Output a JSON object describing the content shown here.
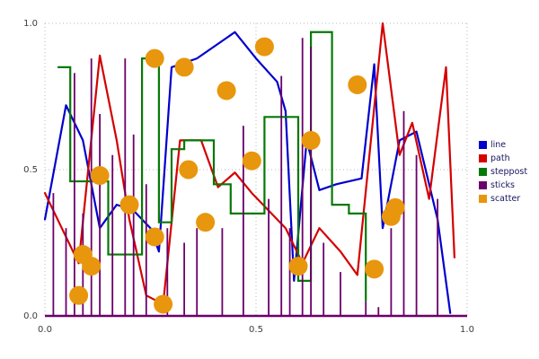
{
  "figure": {
    "background": "#ffffff",
    "tick_color": "#3c3c3c",
    "grid_color": "#b8b8b8"
  },
  "chart_data": {
    "type": "mixed",
    "title": "",
    "xlabel": "",
    "ylabel": "",
    "xlim": [
      0.0,
      1.0
    ],
    "ylim": [
      0.0,
      1.0
    ],
    "grid": "dotted box lines at 0.0, 0.5 and 1.0 on both axes",
    "x_tick_values": [
      0.0,
      0.5,
      1.0
    ],
    "x_tick_labels": [
      "0.0",
      "0.5",
      "1.0"
    ],
    "y_tick_values": [
      0.0,
      0.5,
      1.0
    ],
    "y_tick_labels": [
      "0.0",
      "0.5",
      "1.0"
    ],
    "legend": {
      "position": "center right, outside plot",
      "entries": [
        {
          "label": "line",
          "color": "#0000cd"
        },
        {
          "label": "path",
          "color": "#d40000"
        },
        {
          "label": "steppost",
          "color": "#077807"
        },
        {
          "label": "sticks",
          "color": "#6b006b"
        },
        {
          "label": "scatter",
          "color": "#e8960d"
        }
      ]
    },
    "series": [
      {
        "name": "line",
        "type": "line",
        "color": "#0000cd",
        "x": [
          0.0,
          0.05,
          0.09,
          0.13,
          0.17,
          0.21,
          0.25,
          0.27,
          0.3,
          0.36,
          0.45,
          0.5,
          0.55,
          0.57,
          0.59,
          0.62,
          0.65,
          0.69,
          0.72,
          0.75,
          0.78,
          0.8,
          0.84,
          0.88,
          0.93,
          0.96
        ],
        "y": [
          0.33,
          0.72,
          0.6,
          0.3,
          0.38,
          0.36,
          0.3,
          0.22,
          0.85,
          0.88,
          0.97,
          0.88,
          0.8,
          0.7,
          0.12,
          0.6,
          0.43,
          0.45,
          0.46,
          0.47,
          0.86,
          0.3,
          0.6,
          0.63,
          0.33,
          0.01
        ]
      },
      {
        "name": "path",
        "type": "line",
        "color": "#d40000",
        "x": [
          0.0,
          0.04,
          0.08,
          0.13,
          0.17,
          0.2,
          0.24,
          0.28,
          0.32,
          0.37,
          0.41,
          0.45,
          0.49,
          0.53,
          0.57,
          0.61,
          0.65,
          0.7,
          0.74,
          0.8,
          0.84,
          0.87,
          0.91,
          0.95,
          0.97
        ],
        "y": [
          0.42,
          0.3,
          0.18,
          0.89,
          0.6,
          0.33,
          0.07,
          0.04,
          0.6,
          0.6,
          0.44,
          0.49,
          0.42,
          0.36,
          0.3,
          0.18,
          0.3,
          0.22,
          0.14,
          1.0,
          0.55,
          0.66,
          0.4,
          0.85,
          0.2
        ]
      },
      {
        "name": "steppost",
        "type": "step-post",
        "color": "#077807",
        "x": [
          0.03,
          0.06,
          0.15,
          0.23,
          0.27,
          0.3,
          0.33,
          0.37,
          0.4,
          0.44,
          0.48,
          0.52,
          0.56,
          0.6,
          0.63,
          0.68,
          0.72,
          0.76
        ],
        "y": [
          0.85,
          0.46,
          0.21,
          0.88,
          0.32,
          0.57,
          0.6,
          0.6,
          0.45,
          0.35,
          0.35,
          0.68,
          0.68,
          0.12,
          0.97,
          0.38,
          0.35,
          0.05
        ]
      },
      {
        "name": "sticks",
        "type": "sticks",
        "color": "#6b006b",
        "baseline": 0.0,
        "x": [
          0.02,
          0.05,
          0.07,
          0.09,
          0.11,
          0.13,
          0.16,
          0.19,
          0.21,
          0.24,
          0.29,
          0.33,
          0.36,
          0.42,
          0.47,
          0.53,
          0.56,
          0.58,
          0.61,
          0.63,
          0.66,
          0.7,
          0.76,
          0.79,
          0.82,
          0.85,
          0.88,
          0.93
        ],
        "y": [
          0.42,
          0.3,
          0.83,
          0.35,
          0.88,
          0.69,
          0.55,
          0.88,
          0.62,
          0.45,
          0.3,
          0.25,
          0.3,
          0.3,
          0.65,
          0.4,
          0.82,
          0.3,
          0.95,
          0.92,
          0.25,
          0.15,
          0.05,
          0.03,
          0.3,
          0.7,
          0.55,
          0.4
        ]
      },
      {
        "name": "scatter",
        "type": "scatter",
        "color": "#e8960d",
        "marker_radius_px": 10.5,
        "x": [
          0.26,
          0.33,
          0.52,
          0.43,
          0.74,
          0.13,
          0.34,
          0.49,
          0.63,
          0.2,
          0.38,
          0.26,
          0.83,
          0.82,
          0.09,
          0.11,
          0.6,
          0.78,
          0.08,
          0.28
        ],
        "y": [
          0.88,
          0.85,
          0.92,
          0.77,
          0.79,
          0.48,
          0.5,
          0.53,
          0.6,
          0.38,
          0.32,
          0.27,
          0.37,
          0.34,
          0.21,
          0.17,
          0.17,
          0.16,
          0.07,
          0.04
        ]
      }
    ]
  }
}
